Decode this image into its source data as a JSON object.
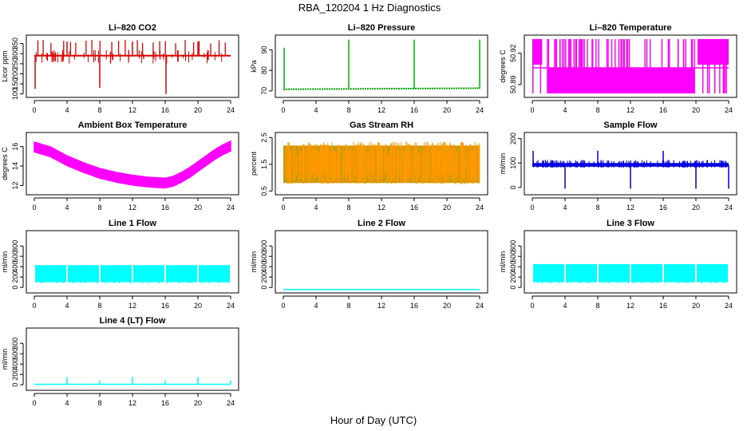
{
  "figure": {
    "title": "RBA_120204  1 Hz Diagnostics",
    "xlabel": "Hour of Day (UTC)"
  },
  "chart_data": [
    {
      "type": "line",
      "title": "Li–820 CO2",
      "ylabel": "Licor ppm",
      "xlim": [
        0,
        24
      ],
      "xticks": [
        "0",
        "4",
        "8",
        "12",
        "16",
        "20",
        "24"
      ],
      "ylim": [
        95,
        380
      ],
      "yticks": [
        "100",
        "150",
        "200",
        "250",
        "300",
        "350"
      ],
      "color": "#e00000",
      "pattern": "co2",
      "series": [
        {
          "x": [
            0,
            24
          ],
          "y": [
            290,
            290
          ]
        }
      ],
      "spikes": [
        {
          "x": 0.1,
          "y": 125
        },
        {
          "x": 8.0,
          "y": 130
        },
        {
          "x": 16.1,
          "y": 100
        },
        {
          "x": 4.0,
          "y": 360
        },
        {
          "x": 12.0,
          "y": 360
        },
        {
          "x": 20.0,
          "y": 360
        }
      ]
    },
    {
      "type": "line",
      "title": "Li–820 Pressure",
      "ylabel": "kPa",
      "xlim": [
        0,
        24
      ],
      "xticks": [
        "0",
        "4",
        "8",
        "12",
        "16",
        "20",
        "24"
      ],
      "ylim": [
        68,
        96
      ],
      "yticks": [
        "70",
        "80",
        "90"
      ],
      "color": "#00b000",
      "pattern": "pressure",
      "series": [
        {
          "x": [
            0,
            24
          ],
          "y": [
            71,
            71.5
          ]
        }
      ],
      "spikes": [
        {
          "x": 0.1,
          "y": 91
        },
        {
          "x": 8.0,
          "y": 95
        },
        {
          "x": 16.0,
          "y": 95
        },
        {
          "x": 24.0,
          "y": 95
        }
      ]
    },
    {
      "type": "line",
      "title": "Li–820 Temperature",
      "ylabel": "degrees C",
      "xlim": [
        0,
        24
      ],
      "xticks": [
        "0",
        "4",
        "8",
        "12",
        "16",
        "20",
        "24"
      ],
      "ylim": [
        50.88,
        50.935
      ],
      "yticks": [
        "50.89",
        "50.92"
      ],
      "color": "#ff00ff",
      "pattern": "lictemp",
      "series": [
        {
          "x": [
            0,
            24
          ],
          "y": [
            50.902,
            50.902
          ]
        }
      ]
    },
    {
      "type": "line",
      "title": "Ambient Box Temperature",
      "ylabel": "degrees C",
      "xlim": [
        0,
        24
      ],
      "xticks": [
        "0",
        "4",
        "8",
        "12",
        "16",
        "20",
        "24"
      ],
      "ylim": [
        11.3,
        17.2
      ],
      "yticks": [
        "12",
        "14",
        "16"
      ],
      "color": "#ff00ff",
      "pattern": "boxtemp",
      "series": [
        {
          "x": [
            0,
            2,
            4,
            6,
            8,
            10,
            12,
            14,
            16,
            17,
            18,
            19,
            20,
            21,
            22,
            23,
            24
          ],
          "y": [
            16.0,
            15.5,
            14.6,
            13.9,
            13.3,
            12.9,
            12.6,
            12.4,
            12.3,
            12.5,
            12.9,
            13.4,
            14.0,
            14.6,
            15.2,
            15.7,
            16.1
          ]
        }
      ]
    },
    {
      "type": "line",
      "title": "Gas Stream RH",
      "ylabel": "percent",
      "xlim": [
        0,
        24
      ],
      "xticks": [
        "0",
        "4",
        "8",
        "12",
        "16",
        "20",
        "24"
      ],
      "ylim": [
        0.45,
        2.6
      ],
      "yticks": [
        "0.5",
        "1.5",
        "2.5"
      ],
      "color": "#ff9900",
      "pattern": "rh",
      "series": [
        {
          "x": [
            0,
            24
          ],
          "y": [
            1.45,
            1.45
          ]
        }
      ]
    },
    {
      "type": "line",
      "title": "Sample Flow",
      "ylabel": "ml/min",
      "xlim": [
        0,
        24
      ],
      "xticks": [
        "0",
        "4",
        "8",
        "12",
        "16",
        "20",
        "24"
      ],
      "ylim": [
        -20,
        215
      ],
      "yticks": [
        "0",
        "100",
        "200"
      ],
      "color": "#0000e0",
      "pattern": "sampleflow",
      "series": [
        {
          "x": [
            0,
            24
          ],
          "y": [
            92,
            92
          ]
        }
      ],
      "spikes": [
        {
          "x": 0.1,
          "y": 150
        },
        {
          "x": 8.0,
          "y": 150
        },
        {
          "x": 16.0,
          "y": 150
        },
        {
          "x": 4.0,
          "y": -5
        },
        {
          "x": 12.0,
          "y": -5
        },
        {
          "x": 20.0,
          "y": -5
        },
        {
          "x": 24.0,
          "y": -5
        }
      ]
    },
    {
      "type": "line",
      "title": "Line 1 Flow",
      "ylabel": "ml/min",
      "xlim": [
        0,
        24
      ],
      "xticks": [
        "0",
        "4",
        "8",
        "12",
        "16",
        "20",
        "24"
      ],
      "ylim": [
        -60,
        1050
      ],
      "yticks": [
        "0",
        "200",
        "400",
        "600",
        "800"
      ],
      "color": "#00ffff",
      "pattern": "band",
      "series": [
        {
          "x": [
            0,
            24
          ],
          "y": [
            100,
            430
          ]
        }
      ]
    },
    {
      "type": "line",
      "title": "Line 2 Flow",
      "ylabel": "ml/min",
      "xlim": [
        0,
        24
      ],
      "xticks": [
        "0",
        "4",
        "8",
        "12",
        "16",
        "20",
        "24"
      ],
      "ylim": [
        -60,
        1050
      ],
      "yticks": [
        "0",
        "200",
        "400",
        "600",
        "800"
      ],
      "color": "#00ffff",
      "pattern": "flat",
      "series": [
        {
          "x": [
            0,
            24
          ],
          "y": [
            -40,
            -40
          ]
        }
      ]
    },
    {
      "type": "line",
      "title": "Line 3 Flow",
      "ylabel": "ml/min",
      "xlim": [
        0,
        24
      ],
      "xticks": [
        "0",
        "4",
        "8",
        "12",
        "16",
        "20",
        "24"
      ],
      "ylim": [
        -60,
        1050
      ],
      "yticks": [
        "0",
        "200",
        "400",
        "600",
        "800"
      ],
      "color": "#00ffff",
      "pattern": "band",
      "series": [
        {
          "x": [
            0,
            24
          ],
          "y": [
            100,
            450
          ]
        }
      ]
    },
    {
      "type": "line",
      "title": "Line 4 (LT) Flow",
      "ylabel": "ml/min",
      "xlim": [
        0,
        24
      ],
      "xticks": [
        "0",
        "4",
        "8",
        "12",
        "16",
        "20",
        "24"
      ],
      "ylim": [
        -60,
        1050
      ],
      "yticks": [
        "0",
        "200",
        "400",
        "600",
        "800"
      ],
      "color": "#00ffff",
      "pattern": "flat",
      "series": [
        {
          "x": [
            0,
            24
          ],
          "y": [
            10,
            10
          ]
        }
      ],
      "spikes": [
        {
          "x": 4.0,
          "y": 150
        },
        {
          "x": 8.0,
          "y": 80
        },
        {
          "x": 12.0,
          "y": 150
        },
        {
          "x": 16.0,
          "y": 80
        },
        {
          "x": 20.0,
          "y": 150
        },
        {
          "x": 24.0,
          "y": 80
        }
      ]
    }
  ]
}
